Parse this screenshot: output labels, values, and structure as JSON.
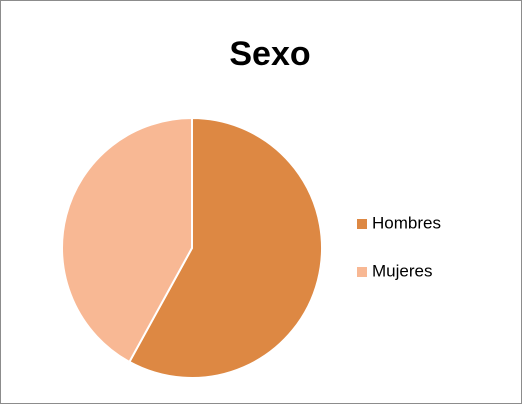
{
  "chart_data": {
    "type": "pie",
    "title": "Sexo",
    "categories": [
      "Hombres",
      "Mujeres"
    ],
    "values": [
      58,
      42
    ],
    "colors": [
      "#dd8843",
      "#f8b894"
    ],
    "legend": "right"
  }
}
